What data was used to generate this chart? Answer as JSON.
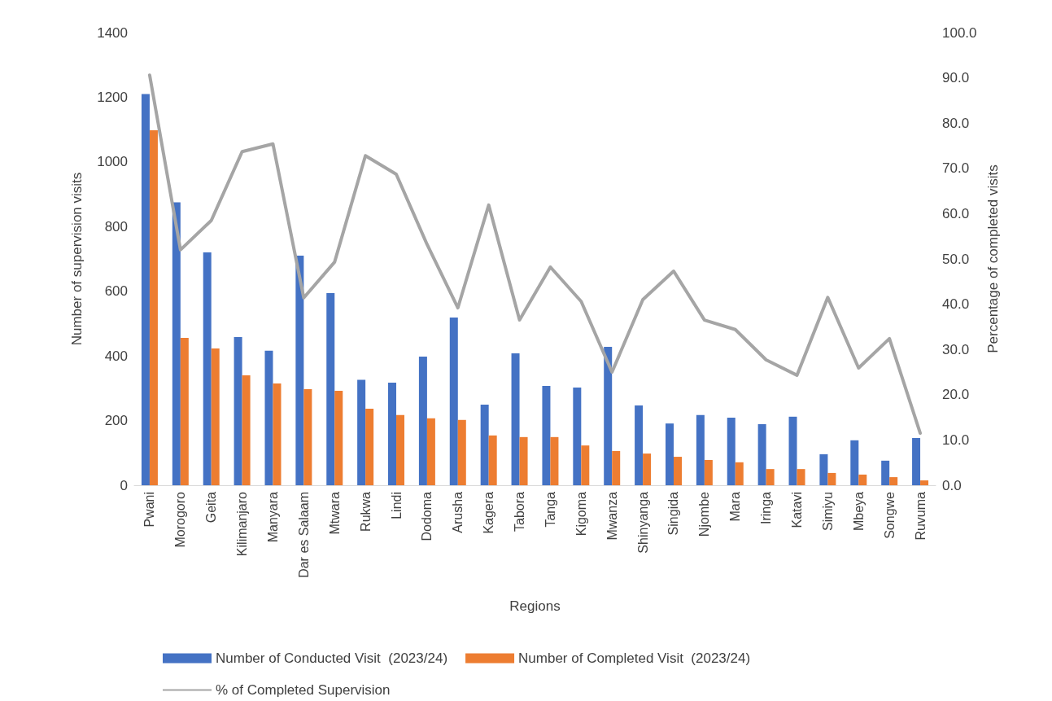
{
  "chart_data": {
    "type": "bar",
    "xlabel": "Regions",
    "ylabel": "Number of supervision visits",
    "y2label": "Percentage of completed visits",
    "categories": [
      "Pwani",
      "Morogoro",
      "Geita",
      "Kilimanjaro",
      "Manyara",
      "Dar es Salaam",
      "Mtwara",
      "Rukwa",
      "Lindi",
      "Dodoma",
      "Arusha",
      "Kagera",
      "Tabora",
      "Tanga",
      "Kigoma",
      "Mwanza",
      "Shinyanga",
      "Singida",
      "Njombe",
      "Mara",
      "Iringa",
      "Katavi",
      "Simiyu",
      "Mbeya",
      "Songwe",
      "Ruvuma"
    ],
    "series": [
      {
        "name": "Number of Conducted Visit  (2023/24)",
        "color": "#4472c4",
        "values": [
          1210,
          875,
          720,
          458,
          416,
          710,
          594,
          326,
          317,
          398,
          519,
          249,
          408,
          307,
          302,
          428,
          247,
          191,
          217,
          209,
          189,
          212,
          96,
          139,
          76,
          146
        ]
      },
      {
        "name": "Number of Completed Visit  (2023/24)",
        "color": "#ed7d31",
        "values": [
          1098,
          456,
          423,
          340,
          315,
          297,
          292,
          237,
          217,
          207,
          202,
          154,
          149,
          149,
          123,
          106,
          98,
          88,
          78,
          71,
          50,
          50,
          38,
          33,
          25,
          15
        ]
      },
      {
        "name": "% of Completed Supervision",
        "type": "line",
        "axis": "y2",
        "color": "#a5a5a5",
        "values": [
          90.6,
          52.0,
          58.5,
          73.7,
          75.4,
          41.4,
          49.3,
          72.8,
          68.7,
          53.2,
          39.2,
          61.9,
          36.5,
          48.2,
          40.6,
          25.0,
          41.0,
          47.3,
          36.5,
          34.4,
          27.7,
          24.3,
          41.5,
          25.9,
          32.4,
          11.5
        ]
      }
    ],
    "ylim": [
      0,
      1400
    ],
    "yticks": [
      0,
      200,
      400,
      600,
      800,
      1000,
      1200,
      1400
    ],
    "y2lim": [
      0,
      100
    ],
    "y2ticks": [
      {
        "value": 0,
        "label": "0.0"
      },
      {
        "value": 10,
        "label": "10.0"
      },
      {
        "value": 20,
        "label": "20.0"
      },
      {
        "value": 30,
        "label": "30.0"
      },
      {
        "value": 40,
        "label": "40.0"
      },
      {
        "value": 50,
        "label": "50.0"
      },
      {
        "value": 60,
        "label": "60.0"
      },
      {
        "value": 70,
        "label": "70.0"
      },
      {
        "value": 80,
        "label": "80.0"
      },
      {
        "value": 90,
        "label": "90.0"
      },
      {
        "value": 100,
        "label": "100.0"
      }
    ],
    "marker": "none",
    "line_style": "solid",
    "grid": false,
    "legend": "bottom"
  }
}
